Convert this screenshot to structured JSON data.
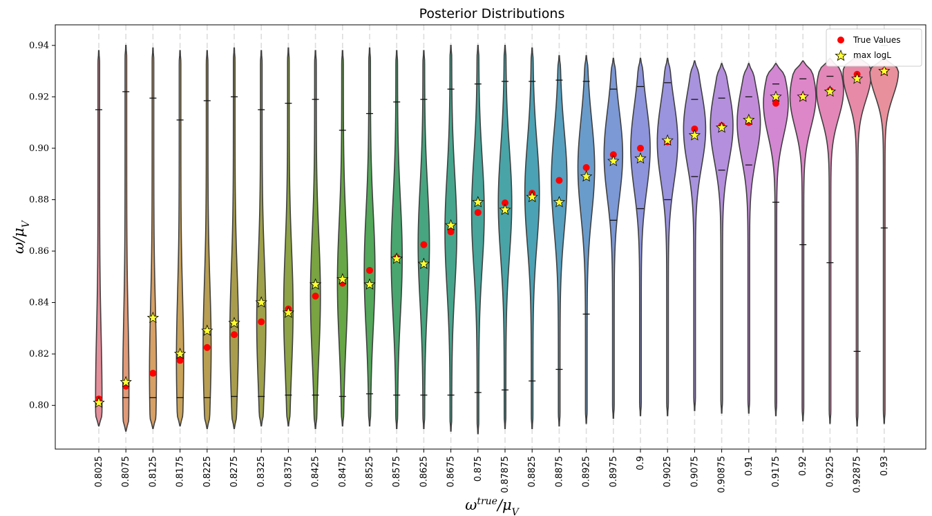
{
  "chart_data": {
    "type": "violin",
    "title": "Posterior Distributions",
    "xlabel": "ω^true/μ_V",
    "ylabel": "ω/μ_V",
    "ylim": [
      0.783,
      0.948
    ],
    "yticks": [
      "0.80",
      "0.82",
      "0.84",
      "0.86",
      "0.88",
      "0.90",
      "0.92",
      "0.94"
    ],
    "grid": "vertical dashed",
    "legend": {
      "position": "top-right",
      "entries": [
        "True Values",
        "max logL"
      ]
    },
    "colors": {
      "true_marker": "#ff0000",
      "maxlogl_marker": "#ffff33",
      "violin_edge": "#3f3f3f"
    },
    "categories": [
      "0.8025",
      "0.8075",
      "0.8125",
      "0.8175",
      "0.8225",
      "0.8275",
      "0.8325",
      "0.8375",
      "0.8425",
      "0.8475",
      "0.8525",
      "0.8575",
      "0.8625",
      "0.8675",
      "0.875",
      "0.87875",
      "0.8825",
      "0.8875",
      "0.8925",
      "0.8975",
      "0.9",
      "0.9025",
      "0.9075",
      "0.90875",
      "0.91",
      "0.9175",
      "0.92",
      "0.9225",
      "0.92875",
      "0.93"
    ],
    "true_values": [
      0.8025,
      0.8075,
      0.8125,
      0.8175,
      0.8225,
      0.8275,
      0.8325,
      0.8375,
      0.8425,
      0.8475,
      0.8525,
      0.8575,
      0.8625,
      0.8675,
      0.875,
      0.87875,
      0.8825,
      0.8875,
      0.8925,
      0.8975,
      0.9,
      0.9025,
      0.9075,
      0.90875,
      0.91,
      0.9175,
      0.92,
      0.9225,
      0.92875,
      0.93
    ],
    "max_logL": [
      0.801,
      0.809,
      0.834,
      0.82,
      0.829,
      0.832,
      0.84,
      0.836,
      0.847,
      0.849,
      0.847,
      0.857,
      0.855,
      0.87,
      0.879,
      0.876,
      0.881,
      0.879,
      0.889,
      0.895,
      0.896,
      0.903,
      0.905,
      0.908,
      0.911,
      0.92,
      0.92,
      0.922,
      0.927,
      0.93
    ],
    "quantile_low": [
      0.803,
      0.803,
      0.803,
      0.803,
      0.803,
      0.8035,
      0.8035,
      0.804,
      0.804,
      0.8035,
      0.8045,
      0.804,
      0.804,
      0.804,
      0.805,
      0.806,
      0.8095,
      0.814,
      0.8355,
      0.872,
      0.8765,
      0.88,
      0.889,
      0.8915,
      0.8935,
      0.879,
      0.8625,
      0.8555,
      0.821,
      0.869
    ],
    "quantile_high": [
      0.915,
      0.922,
      0.9195,
      0.911,
      0.9185,
      0.92,
      0.915,
      0.9175,
      0.919,
      0.907,
      0.9135,
      0.918,
      0.919,
      0.923,
      0.925,
      0.926,
      0.926,
      0.9265,
      0.926,
      0.923,
      0.924,
      0.9255,
      0.919,
      0.9195,
      0.92,
      0.925,
      0.927,
      0.928,
      0.935,
      0.94
    ],
    "range_min": [
      0.792,
      0.79,
      0.791,
      0.792,
      0.791,
      0.791,
      0.792,
      0.792,
      0.791,
      0.792,
      0.792,
      0.791,
      0.791,
      0.79,
      0.789,
      0.791,
      0.791,
      0.792,
      0.793,
      0.795,
      0.796,
      0.796,
      0.798,
      0.797,
      0.797,
      0.796,
      0.794,
      0.793,
      0.792,
      0.793
    ],
    "range_max": [
      0.938,
      0.94,
      0.939,
      0.938,
      0.938,
      0.939,
      0.938,
      0.939,
      0.938,
      0.938,
      0.939,
      0.938,
      0.938,
      0.94,
      0.94,
      0.94,
      0.939,
      0.936,
      0.936,
      0.935,
      0.935,
      0.935,
      0.934,
      0.933,
      0.933,
      0.933,
      0.934,
      0.935,
      0.936,
      0.935
    ],
    "body_width": [
      0.1,
      0.09,
      0.12,
      0.13,
      0.16,
      0.18,
      0.2,
      0.21,
      0.23,
      0.24,
      0.26,
      0.27,
      0.28,
      0.3,
      0.33,
      0.36,
      0.4,
      0.44,
      0.48,
      0.55,
      0.58,
      0.62,
      0.68,
      0.7,
      0.72,
      0.78,
      0.82,
      0.86,
      0.9,
      0.92
    ],
    "fill_colors": [
      "#e58f9b",
      "#e09a78",
      "#d7a065",
      "#c9a35a",
      "#b99e52",
      "#a99d4d",
      "#9ea04a",
      "#8ea345",
      "#7aa341",
      "#67a745",
      "#53a85a",
      "#49a66f",
      "#47a57f",
      "#46a68d",
      "#47a59b",
      "#49a4a7",
      "#4ba2b4",
      "#57a0c0",
      "#6a9ccb",
      "#7c98d5",
      "#8d94db",
      "#9a93de",
      "#a893de",
      "#b48fdd",
      "#c28bd9",
      "#d387d3",
      "#dd86c8",
      "#e387b8",
      "#e78aa8",
      "#e8909c"
    ]
  }
}
